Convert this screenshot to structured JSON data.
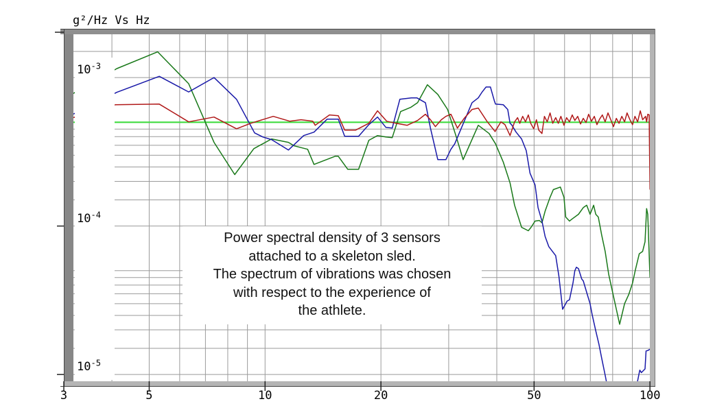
{
  "window": {
    "title": "g²/Hz Vs Hz"
  },
  "annotation": {
    "lines": [
      "Power spectral density of 3 sensors",
      "attached to a skeleton sled.",
      "The spectrum of vibrations was chosen",
      "with respect to the experience of",
      "the athlete."
    ]
  },
  "axes": {
    "x": {
      "scale": "log",
      "min": 3,
      "max": 100,
      "unit": "Hz",
      "ticks": [
        {
          "label": "3",
          "value": 3
        },
        {
          "label": "5",
          "value": 5
        },
        {
          "label": "10",
          "value": 10
        },
        {
          "label": "20",
          "value": 20
        },
        {
          "label": "50",
          "value": 50
        },
        {
          "label": "100",
          "value": 100
        }
      ],
      "gridlines": [
        4,
        5,
        6,
        7,
        8,
        9,
        10,
        20,
        30,
        40,
        50,
        60,
        70,
        80,
        90
      ]
    },
    "y": {
      "scale": "log",
      "min": 9.1e-06,
      "max": 0.00196,
      "unit": "g²/Hz",
      "ticks": [
        {
          "base": "10",
          "exp": "-3",
          "value": 0.001
        },
        {
          "base": "10",
          "exp": "-4",
          "value": 0.0001
        },
        {
          "base": "10",
          "exp": "-5",
          "value": 1e-05
        }
      ],
      "gridlines": [
        0.0015,
        0.001,
        0.0005,
        0.00045,
        0.0004,
        0.00035,
        0.0003,
        0.00025,
        0.0002,
        0.00015,
        0.0001,
        5e-05,
        4.5e-05,
        4e-05,
        3.5e-05,
        3e-05,
        2.5e-05,
        2e-05,
        1.5e-05,
        1e-05
      ]
    }
  },
  "chart_data": {
    "type": "line",
    "title": "g²/Hz Vs Hz",
    "xlabel": "Hz",
    "ylabel": "g²/Hz",
    "xlim": [
      3,
      100
    ],
    "ylim": [
      9.1e-06,
      0.00196
    ],
    "xscale": "log",
    "yscale": "log",
    "grid": true,
    "legend": "none",
    "series": [
      {
        "name": "reference-level-line",
        "color": "#3fdc3f",
        "width": 2.2,
        "points": [
          [
            3.17,
            0.0005
          ],
          [
            100,
            0.0005
          ]
        ]
      },
      {
        "name": "sensor-green-trace",
        "color": "#187818",
        "width": 1.5,
        "points": [
          [
            3.17,
            0.00078
          ],
          [
            4.12,
            0.00115
          ],
          [
            5.26,
            0.00149
          ],
          [
            6.33,
            0.00091
          ],
          [
            7.37,
            0.000366
          ],
          [
            8.34,
            0.000222
          ],
          [
            9.35,
            0.000332
          ],
          [
            10.4,
            0.000386
          ],
          [
            11.5,
            0.000366
          ],
          [
            11.9,
            0.000347
          ],
          [
            12.9,
            0.000329
          ],
          [
            13.4,
            0.00026
          ],
          [
            15.2,
            0.000295
          ],
          [
            15.5,
            0.000295
          ],
          [
            16.4,
            0.000241
          ],
          [
            17.5,
            0.000241
          ],
          [
            18.6,
            0.000378
          ],
          [
            19.6,
            0.000407
          ],
          [
            20.6,
            0.000398
          ],
          [
            21.4,
            0.000394
          ],
          [
            22.5,
            0.00059
          ],
          [
            23.9,
            0.00063
          ],
          [
            24.9,
            0.000677
          ],
          [
            26.4,
            0.000895
          ],
          [
            28.1,
            0.00077
          ],
          [
            29.8,
            0.00061
          ],
          [
            31.4,
            0.000398
          ],
          [
            32.7,
            0.00028
          ],
          [
            35.8,
            0.000477
          ],
          [
            38.2,
            0.00042
          ],
          [
            39.7,
            0.000358
          ],
          [
            41.6,
            0.000269
          ],
          [
            43.3,
            0.000195
          ],
          [
            44.5,
            0.000138
          ],
          [
            46.4,
            9.8e-05
          ],
          [
            48.3,
            9.3e-05
          ],
          [
            49.1,
            9.8e-05
          ],
          [
            50.3,
            0.000108
          ],
          [
            51.6,
            0.000109
          ],
          [
            52.4,
            0.000105
          ],
          [
            53.4,
            0.000126
          ],
          [
            55.0,
            0.000156
          ],
          [
            56.1,
            0.000176
          ],
          [
            58.5,
            0.000183
          ],
          [
            59.8,
            0.000156
          ],
          [
            60.4,
            0.000115
          ],
          [
            61.8,
            0.000108
          ],
          [
            62.6,
            0.000111
          ],
          [
            65.2,
            0.00012
          ],
          [
            67.1,
            0.000133
          ],
          [
            68.5,
            0.000138
          ],
          [
            69.9,
            0.00012
          ],
          [
            71.4,
            0.000138
          ],
          [
            72.3,
            0.00012
          ],
          [
            73.4,
            0.000115
          ],
          [
            74.9,
            8.7e-05
          ],
          [
            76.5,
            6.75e-05
          ],
          [
            78.1,
            4.74e-05
          ],
          [
            79.7,
            3.73e-05
          ],
          [
            83.4,
            2.18e-05
          ],
          [
            85.9,
            3e-05
          ],
          [
            88.1,
            3.46e-05
          ],
          [
            90.1,
            4.13e-05
          ],
          [
            91.7,
            5.1e-05
          ],
          [
            93.8,
            6.5e-05
          ],
          [
            95.7,
            6.75e-05
          ],
          [
            97.1,
            7.83e-05
          ],
          [
            98.0,
            0.000131
          ],
          [
            98.7,
            0.00012
          ],
          [
            100,
            4.49e-05
          ]
        ]
      },
      {
        "name": "sensor-blue-trace",
        "color": "#1818a8",
        "width": 1.5,
        "points": [
          [
            3.17,
            0.000566
          ],
          [
            4.12,
            0.000796
          ],
          [
            5.31,
            0.00102
          ],
          [
            6.33,
            0.0008
          ],
          [
            7.37,
            0.001
          ],
          [
            8.43,
            0.000714
          ],
          [
            9.39,
            0.000424
          ],
          [
            9.87,
            0.000398
          ],
          [
            10.4,
            0.000382
          ],
          [
            11.5,
            0.000325
          ],
          [
            12.6,
            0.000407
          ],
          [
            13.4,
            0.000429
          ],
          [
            14.5,
            0.000525
          ],
          [
            15.5,
            0.000525
          ],
          [
            16.1,
            0.000402
          ],
          [
            17.5,
            0.000402
          ],
          [
            18.6,
            0.000482
          ],
          [
            19.6,
            0.000542
          ],
          [
            20.6,
            0.000462
          ],
          [
            21.4,
            0.000457
          ],
          [
            22.4,
            0.000714
          ],
          [
            24.0,
            0.00073
          ],
          [
            24.8,
            0.00073
          ],
          [
            26.1,
            0.000677
          ],
          [
            26.9,
            0.000457
          ],
          [
            28.1,
            0.00028
          ],
          [
            29.5,
            0.00028
          ],
          [
            30.4,
            0.000329
          ],
          [
            31.1,
            0.000358
          ],
          [
            34.5,
            0.000677
          ],
          [
            35.8,
            0.00073
          ],
          [
            36.6,
            0.000796
          ],
          [
            37.5,
            0.000864
          ],
          [
            38.5,
            0.000864
          ],
          [
            39.4,
            0.0007
          ],
          [
            39.7,
            0.000663
          ],
          [
            41.6,
            0.000656
          ],
          [
            42.7,
            0.00061
          ],
          [
            43.3,
            0.000492
          ],
          [
            43.7,
            0.000482
          ],
          [
            44.9,
            0.000429
          ],
          [
            46.4,
            0.000386
          ],
          [
            47.7,
            0.000322
          ],
          [
            48.8,
            0.000227
          ],
          [
            50.3,
            0.000189
          ],
          [
            51.2,
            0.000133
          ],
          [
            52.4,
            0.000108
          ],
          [
            53.4,
            8.5e-05
          ],
          [
            54.6,
            7.26e-05
          ],
          [
            56.9,
            6.32e-05
          ],
          [
            58.0,
            4.59e-05
          ],
          [
            59.3,
            2.75e-05
          ],
          [
            60.0,
            2.9e-05
          ],
          [
            60.9,
            3.12e-05
          ],
          [
            61.8,
            3.19e-05
          ],
          [
            63.1,
            4.13e-05
          ],
          [
            63.8,
            5e-05
          ],
          [
            64.4,
            5.28e-05
          ],
          [
            65.2,
            5.17e-05
          ],
          [
            66.5,
            4.39e-05
          ],
          [
            67.1,
            4.27e-05
          ],
          [
            68.5,
            3.57e-05
          ],
          [
            69.9,
            3e-05
          ],
          [
            70.8,
            2.51e-05
          ],
          [
            72.3,
            1.97e-05
          ],
          [
            73.7,
            1.6e-05
          ],
          [
            74.9,
            1.29e-05
          ],
          [
            76.5,
            9.9e-06
          ],
          [
            78.5,
            7e-06
          ],
          [
            81.0,
            5.5e-06
          ],
          [
            85.0,
            4.5e-06
          ],
          [
            89.0,
            5.8e-06
          ],
          [
            92.0,
            8e-06
          ],
          [
            93.8,
            1.03e-05
          ],
          [
            94.1,
            1.07e-05
          ],
          [
            95.0,
            1.03e-05
          ],
          [
            97.1,
            1.09e-05
          ],
          [
            97.7,
            1.44e-05
          ],
          [
            98.7,
            1.45e-05
          ],
          [
            100,
            1.48e-05
          ]
        ]
      },
      {
        "name": "sensor-red-trace",
        "color": "#b01818",
        "width": 1.5,
        "points": [
          [
            3.17,
            0.000537
          ],
          [
            4.08,
            0.000656
          ],
          [
            5.31,
            0.000663
          ],
          [
            6.33,
            0.000503
          ],
          [
            7.37,
            0.000542
          ],
          [
            8.43,
            0.000452
          ],
          [
            9.18,
            0.000492
          ],
          [
            10.5,
            0.000548
          ],
          [
            11.6,
            0.000508
          ],
          [
            12.4,
            0.00052
          ],
          [
            13.3,
            0.000508
          ],
          [
            13.5,
            0.000477
          ],
          [
            14.7,
            0.00056
          ],
          [
            15.5,
            0.000554
          ],
          [
            16.1,
            0.000443
          ],
          [
            17.2,
            0.000443
          ],
          [
            18.6,
            0.000492
          ],
          [
            19.6,
            0.000597
          ],
          [
            20.7,
            0.000508
          ],
          [
            21.9,
            0.000492
          ],
          [
            23.4,
            0.000477
          ],
          [
            24.9,
            0.000514
          ],
          [
            26.1,
            0.000566
          ],
          [
            26.9,
            0.00052
          ],
          [
            27.7,
            0.000467
          ],
          [
            28.7,
            0.00052
          ],
          [
            29.5,
            0.000548
          ],
          [
            30.4,
            0.000566
          ],
          [
            31.6,
            0.000457
          ],
          [
            32.9,
            0.000531
          ],
          [
            34.5,
            0.00061
          ],
          [
            35.8,
            0.000623
          ],
          [
            37.7,
            0.000508
          ],
          [
            39.6,
            0.000433
          ],
          [
            41.0,
            0.000503
          ],
          [
            42.0,
            0.000482
          ],
          [
            43.3,
            0.000407
          ],
          [
            44.5,
            0.000503
          ],
          [
            45.3,
            0.000537
          ],
          [
            45.9,
            0.000492
          ],
          [
            46.7,
            0.000548
          ],
          [
            47.5,
            0.000503
          ],
          [
            48.3,
            0.00056
          ],
          [
            49.0,
            0.000492
          ],
          [
            49.9,
            0.000452
          ],
          [
            50.7,
            0.00052
          ],
          [
            51.4,
            0.000443
          ],
          [
            52.4,
            0.00042
          ],
          [
            53.2,
            0.000548
          ],
          [
            54.1,
            0.000503
          ],
          [
            55.0,
            0.000578
          ],
          [
            55.9,
            0.000492
          ],
          [
            56.9,
            0.000537
          ],
          [
            57.8,
            0.000492
          ],
          [
            58.7,
            0.000548
          ],
          [
            59.8,
            0.000477
          ],
          [
            60.7,
            0.000537
          ],
          [
            61.8,
            0.000503
          ],
          [
            62.8,
            0.00056
          ],
          [
            63.8,
            0.000514
          ],
          [
            64.9,
            0.000548
          ],
          [
            66.0,
            0.000487
          ],
          [
            67.1,
            0.000531
          ],
          [
            68.2,
            0.000498
          ],
          [
            69.3,
            0.000566
          ],
          [
            70.5,
            0.000508
          ],
          [
            71.7,
            0.000548
          ],
          [
            72.8,
            0.000482
          ],
          [
            74.0,
            0.000525
          ],
          [
            75.2,
            0.00056
          ],
          [
            76.5,
            0.000503
          ],
          [
            77.8,
            0.000578
          ],
          [
            79.1,
            0.00052
          ],
          [
            80.4,
            0.000467
          ],
          [
            81.8,
            0.000531
          ],
          [
            83.1,
            0.000492
          ],
          [
            84.5,
            0.000548
          ],
          [
            85.9,
            0.000503
          ],
          [
            87.2,
            0.000578
          ],
          [
            88.7,
            0.00052
          ],
          [
            90.1,
            0.000482
          ],
          [
            91.4,
            0.000548
          ],
          [
            92.9,
            0.000503
          ],
          [
            94.4,
            0.000597
          ],
          [
            95.7,
            0.00052
          ],
          [
            97.4,
            0.000548
          ],
          [
            98.0,
            0.000503
          ],
          [
            98.7,
            0.000566
          ],
          [
            99.5,
            0.00056
          ],
          [
            100,
            0.000176
          ]
        ]
      }
    ],
    "colors": {
      "grid": "#9a9a9a",
      "frame_dark": "#444444",
      "frame_top": "#8f8f8f",
      "frame_left": "#878787",
      "frame_light": "#b5b5b5",
      "background": "#ffffff"
    }
  }
}
